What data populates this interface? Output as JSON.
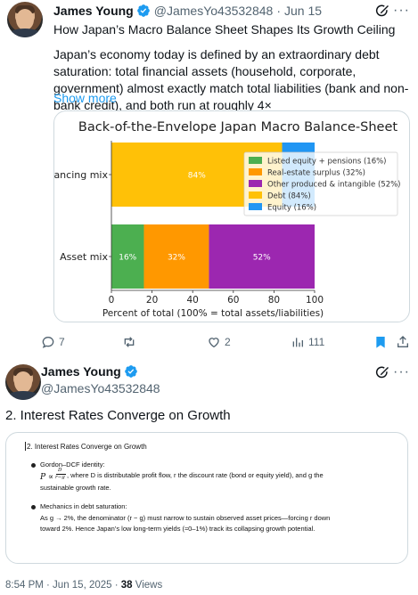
{
  "tweet1": {
    "author": "James Young",
    "handle": "@JamesYo43532848",
    "date": "Jun 15",
    "separator": "·",
    "title": "How Japan’s Macro Balance Sheet Shapes Its Growth Ceiling",
    "body": "Japan’s economy today is defined by an extraordinary debt saturation: total financial assets (household, corporate, government) almost exactly match total liabilities (bank and non-bank credit), and both run at roughly 4×",
    "show_more": "Show more",
    "actions": {
      "replies": "7",
      "reposts": "",
      "likes": "2",
      "views": "111"
    }
  },
  "chart_data": {
    "type": "bar",
    "orientation": "horizontal",
    "stacked": true,
    "title": "Back-of-the-Envelope Japan Macro Balance-Sheet",
    "xlabel": "Percent of total (100% = total assets/liabilities)",
    "ylabel": "",
    "xlim": [
      0,
      100
    ],
    "xticks": [
      "0",
      "20",
      "40",
      "60",
      "80",
      "100"
    ],
    "categories": [
      "Financing mix",
      "Asset mix"
    ],
    "legend_position": "right",
    "series": [
      {
        "name": "Listed equity + pensions (16%)",
        "color": "#4caf50",
        "values": [
          0,
          16
        ],
        "label": "16%"
      },
      {
        "name": "Real-estate surplus (32%)",
        "color": "#ff9800",
        "values": [
          0,
          32
        ],
        "label": "32%"
      },
      {
        "name": "Other produced & intangible (52%)",
        "color": "#9c27b0",
        "values": [
          0,
          52
        ],
        "label": "52%"
      },
      {
        "name": "Debt (84%)",
        "color": "#ffc107",
        "values": [
          84,
          0
        ],
        "label": "84%"
      },
      {
        "name": "Equity (16%)",
        "color": "#2196f3",
        "values": [
          16,
          0
        ],
        "label": ""
      }
    ]
  },
  "tweet2": {
    "author": "James Young",
    "handle": "@JamesYo43532848",
    "text": "2. Interest Rates Converge on Growth",
    "doc": {
      "heading": "2. Interest Rates Converge on Growth",
      "b1_label": "Gordon–DCF identity:",
      "b1_formula_lhs": "P ∝",
      "b1_frac_num": "D",
      "b1_frac_den": "r−g",
      "b1_rest": ", where D is distributable profit flow, r the discount rate (bond or equity yield), and g the",
      "b1_cont": "sustainable growth rate.",
      "b2_label": "Mechanics in debt saturation:",
      "b2_line1": "As g → 2%, the denominator (r − g) must narrow to sustain observed asset prices—forcing r down",
      "b2_line2": "toward 2%. Hence Japan’s low long-term yields (≈0–1%) track its collapsing growth potential."
    },
    "footer": {
      "time": "8:54 PM · Jun 15, 2025 · ",
      "views_count": "38",
      "views_label": " Views"
    }
  },
  "colors": {
    "accent": "#1d9bf0",
    "muted": "#536471",
    "text": "#0f1419",
    "bookmark": "#1d9bf0"
  },
  "icons": [
    "verified-badge-icon",
    "grok-icon",
    "more-icon",
    "reply-icon",
    "repost-icon",
    "like-icon",
    "views-icon",
    "bookmark-icon",
    "share-icon"
  ]
}
